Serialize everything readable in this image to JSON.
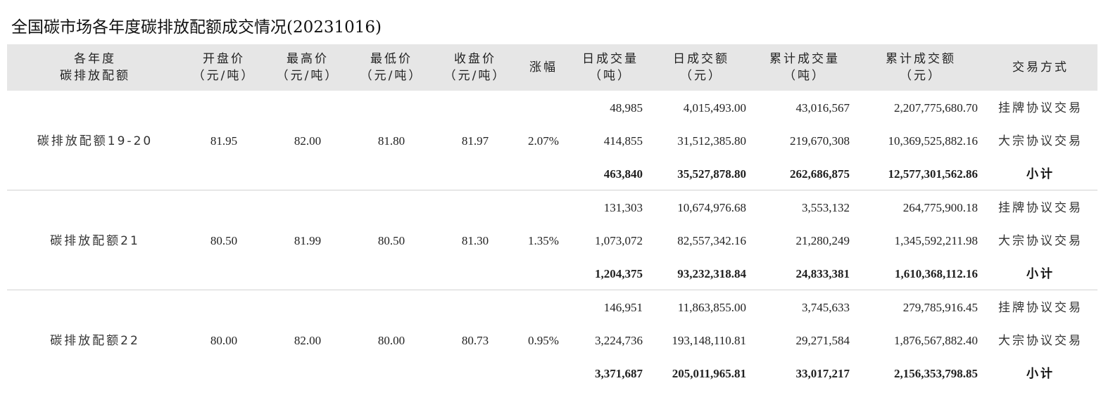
{
  "title": "全国碳市场各年度碳排放配额成交情况(20231016)",
  "headers": {
    "product": [
      "各年度",
      "碳排放配额"
    ],
    "open": [
      "开盘价",
      "（元/吨）"
    ],
    "high": [
      "最高价",
      "（元/吨）"
    ],
    "low": [
      "最低价",
      "（元/吨）"
    ],
    "close": [
      "收盘价",
      "（元/吨）"
    ],
    "change": [
      "涨幅"
    ],
    "daily_vol": [
      "日成交量",
      "（吨）"
    ],
    "daily_amt": [
      "日成交额",
      "（元）"
    ],
    "cum_vol": [
      "累计成交量",
      "（吨）"
    ],
    "cum_amt": [
      "累计成交额",
      "（元）"
    ],
    "method": [
      "交易方式"
    ]
  },
  "groups": [
    {
      "product": "碳排放配额19-20",
      "open": "81.95",
      "high": "82.00",
      "low": "81.80",
      "close": "81.97",
      "change": "2.07%",
      "rows": [
        {
          "daily_vol": "48,985",
          "daily_amt": "4,015,493.00",
          "cum_vol": "43,016,567",
          "cum_amt": "2,207,775,680.70",
          "method": "挂牌协议交易"
        },
        {
          "daily_vol": "414,855",
          "daily_amt": "31,512,385.80",
          "cum_vol": "219,670,308",
          "cum_amt": "10,369,525,882.16",
          "method": "大宗协议交易"
        },
        {
          "daily_vol": "463,840",
          "daily_amt": "35,527,878.80",
          "cum_vol": "262,686,875",
          "cum_amt": "12,577,301,562.86",
          "method": "小计"
        }
      ]
    },
    {
      "product": "碳排放配额21",
      "open": "80.50",
      "high": "81.99",
      "low": "80.50",
      "close": "81.30",
      "change": "1.35%",
      "rows": [
        {
          "daily_vol": "131,303",
          "daily_amt": "10,674,976.68",
          "cum_vol": "3,553,132",
          "cum_amt": "264,775,900.18",
          "method": "挂牌协议交易"
        },
        {
          "daily_vol": "1,073,072",
          "daily_amt": "82,557,342.16",
          "cum_vol": "21,280,249",
          "cum_amt": "1,345,592,211.98",
          "method": "大宗协议交易"
        },
        {
          "daily_vol": "1,204,375",
          "daily_amt": "93,232,318.84",
          "cum_vol": "24,833,381",
          "cum_amt": "1,610,368,112.16",
          "method": "小计"
        }
      ]
    },
    {
      "product": "碳排放配额22",
      "open": "80.00",
      "high": "82.00",
      "low": "80.00",
      "close": "80.73",
      "change": "0.95%",
      "rows": [
        {
          "daily_vol": "146,951",
          "daily_amt": "11,863,855.00",
          "cum_vol": "3,745,633",
          "cum_amt": "279,785,916.45",
          "method": "挂牌协议交易"
        },
        {
          "daily_vol": "3,224,736",
          "daily_amt": "193,148,110.81",
          "cum_vol": "29,271,584",
          "cum_amt": "1,876,567,882.40",
          "method": "大宗协议交易"
        },
        {
          "daily_vol": "3,371,687",
          "daily_amt": "205,011,965.81",
          "cum_vol": "33,017,217",
          "cum_amt": "2,156,353,798.85",
          "method": "小计"
        }
      ]
    }
  ]
}
